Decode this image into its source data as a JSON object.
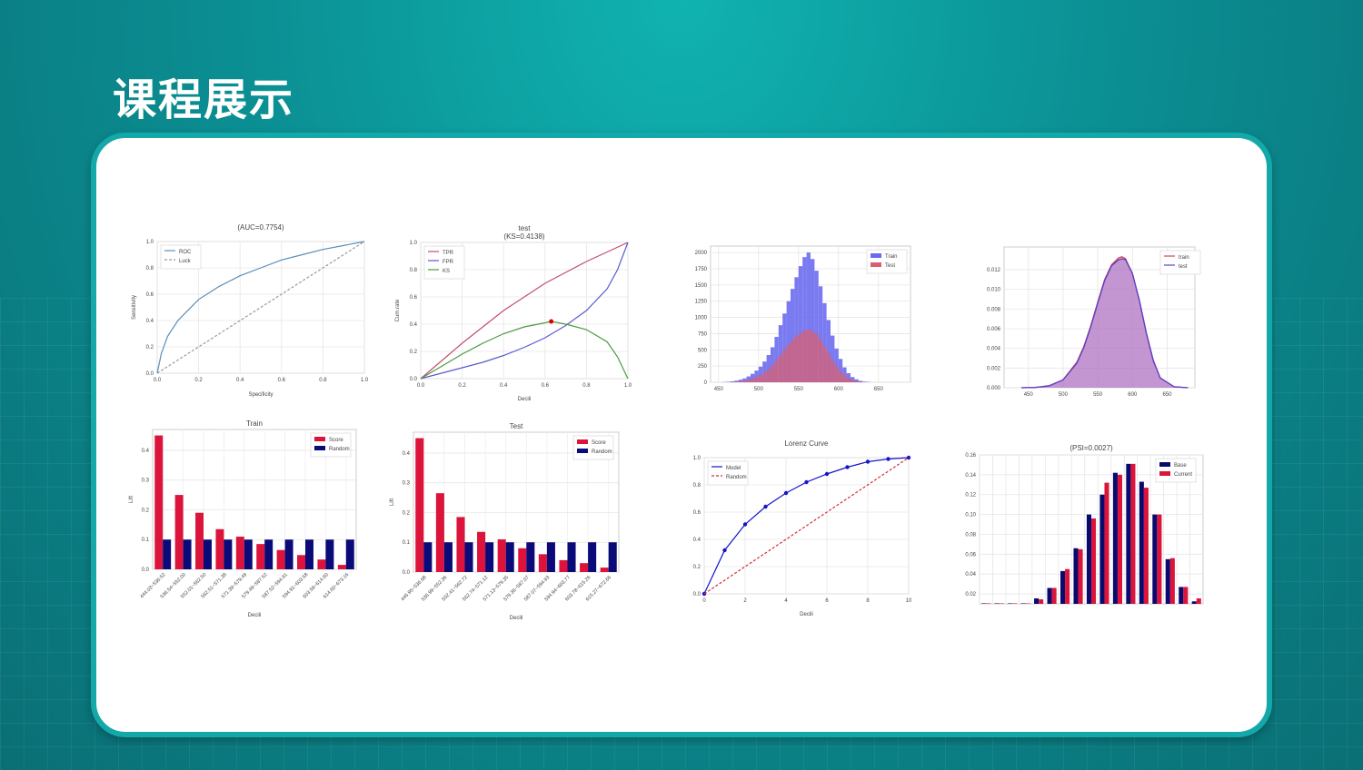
{
  "header": {
    "title": "课程展示"
  },
  "chart_data": [
    {
      "id": "roc",
      "type": "line",
      "title": "(AUC=0.7754)",
      "subtitle": "",
      "xlabel": "Specificity",
      "ylabel": "Sensitivity",
      "xlim": [
        0,
        1
      ],
      "ylim": [
        0,
        1
      ],
      "xticks": [
        "0.0",
        "0.2",
        "0.4",
        "0.6",
        "0.8",
        "1.0"
      ],
      "yticks": [
        "0.0",
        "0.2",
        "0.4",
        "0.6",
        "0.8",
        "1.0"
      ],
      "legend": "top-left",
      "series": [
        {
          "name": "ROC",
          "color": "#5b8db8",
          "style": "solid",
          "x": [
            0,
            0.02,
            0.05,
            0.1,
            0.15,
            0.2,
            0.3,
            0.4,
            0.5,
            0.6,
            0.7,
            0.8,
            0.9,
            1.0
          ],
          "y": [
            0,
            0.15,
            0.28,
            0.4,
            0.48,
            0.56,
            0.66,
            0.74,
            0.8,
            0.86,
            0.9,
            0.94,
            0.97,
            1.0
          ]
        },
        {
          "name": "Luck",
          "color": "#999999",
          "style": "dashed",
          "x": [
            0,
            1
          ],
          "y": [
            0,
            1
          ]
        }
      ]
    },
    {
      "id": "ks",
      "type": "line",
      "title": "test",
      "subtitle": "(KS=0.4138)",
      "xlabel": "Decili",
      "ylabel": "Cum.rate",
      "xlim": [
        0,
        1
      ],
      "ylim": [
        0,
        1
      ],
      "xticks": [
        "0.0",
        "0.2",
        "0.4",
        "0.6",
        "0.8",
        "1.0"
      ],
      "yticks": [
        "0.0",
        "0.2",
        "0.4",
        "0.6",
        "0.8",
        "1.0"
      ],
      "legend": "top-left",
      "marker": {
        "x": 0.63,
        "y": 0.42,
        "color": "#dd0000"
      },
      "series": [
        {
          "name": "TPR",
          "color": "#c0506a",
          "style": "solid",
          "x": [
            0,
            0.1,
            0.2,
            0.3,
            0.4,
            0.5,
            0.6,
            0.7,
            0.8,
            0.9,
            1.0
          ],
          "y": [
            0,
            0.13,
            0.26,
            0.38,
            0.5,
            0.6,
            0.7,
            0.78,
            0.86,
            0.93,
            1.0
          ]
        },
        {
          "name": "FPR",
          "color": "#5a5ad0",
          "style": "solid",
          "x": [
            0,
            0.1,
            0.2,
            0.3,
            0.4,
            0.5,
            0.6,
            0.7,
            0.8,
            0.9,
            0.95,
            1.0
          ],
          "y": [
            0,
            0.04,
            0.08,
            0.12,
            0.17,
            0.23,
            0.3,
            0.39,
            0.5,
            0.66,
            0.8,
            1.0
          ]
        },
        {
          "name": "KS",
          "color": "#4a9a40",
          "style": "solid",
          "x": [
            0,
            0.1,
            0.2,
            0.3,
            0.4,
            0.5,
            0.6,
            0.63,
            0.7,
            0.8,
            0.9,
            0.95,
            1.0
          ],
          "y": [
            0,
            0.09,
            0.18,
            0.26,
            0.33,
            0.38,
            0.41,
            0.42,
            0.4,
            0.36,
            0.27,
            0.16,
            0.0
          ]
        }
      ]
    },
    {
      "id": "hist",
      "type": "bar",
      "title": "",
      "xlim": [
        440,
        690
      ],
      "ylim": [
        0,
        2100
      ],
      "xticks": [
        "450",
        "500",
        "550",
        "600",
        "650"
      ],
      "yticks": [
        "0",
        "250",
        "500",
        "750",
        "1000",
        "1250",
        "1500",
        "1750",
        "2000"
      ],
      "legend": "top-right",
      "bin_start": 455,
      "bin_width": 5,
      "series": [
        {
          "name": "Train",
          "color": "#6b6bf0",
          "values": [
            3,
            8,
            15,
            25,
            40,
            60,
            90,
            130,
            180,
            240,
            320,
            420,
            540,
            700,
            880,
            1060,
            1250,
            1440,
            1620,
            1790,
            1930,
            2000,
            1900,
            1720,
            1480,
            1220,
            960,
            720,
            520,
            360,
            230,
            140,
            80,
            45,
            22,
            10,
            4
          ]
        },
        {
          "name": "Test",
          "color": "#d86070",
          "values": [
            1,
            3,
            6,
            10,
            16,
            25,
            38,
            55,
            80,
            110,
            150,
            200,
            260,
            340,
            420,
            500,
            580,
            650,
            710,
            760,
            800,
            810,
            790,
            740,
            660,
            560,
            450,
            340,
            250,
            170,
            110,
            65,
            35,
            18,
            8,
            3,
            1
          ]
        }
      ]
    },
    {
      "id": "kde",
      "type": "area",
      "title": "",
      "xlim": [
        415,
        690
      ],
      "ylim": [
        0,
        0.0143
      ],
      "xticks": [
        "450",
        "500",
        "550",
        "600",
        "650"
      ],
      "yticks": [
        "0.000",
        "0.002",
        "0.004",
        "0.006",
        "0.008",
        "0.010",
        "0.012"
      ],
      "legend": "top-right",
      "series": [
        {
          "name": "train",
          "color": "#d64050",
          "x": [
            440,
            460,
            480,
            500,
            520,
            530,
            540,
            550,
            560,
            570,
            580,
            585,
            590,
            600,
            610,
            620,
            630,
            640,
            660,
            680
          ],
          "y": [
            0,
            3e-05,
            0.0002,
            0.0008,
            0.0026,
            0.0042,
            0.0063,
            0.0087,
            0.011,
            0.0125,
            0.0132,
            0.0133,
            0.0131,
            0.0116,
            0.0088,
            0.0055,
            0.0027,
            0.001,
            0.0001,
            0
          ]
        },
        {
          "name": "test",
          "color": "#5a40c8",
          "x": [
            440,
            460,
            480,
            500,
            520,
            530,
            540,
            550,
            560,
            570,
            580,
            585,
            590,
            600,
            610,
            620,
            630,
            640,
            660,
            680
          ],
          "y": [
            0,
            3e-05,
            0.0002,
            0.0008,
            0.0025,
            0.0041,
            0.0062,
            0.0086,
            0.0109,
            0.0124,
            0.013,
            0.0131,
            0.013,
            0.0116,
            0.0089,
            0.0056,
            0.0028,
            0.001,
            0.0001,
            0
          ]
        }
      ]
    },
    {
      "id": "lift-train",
      "type": "bar",
      "title": "Train",
      "xlabel": "Decili",
      "ylabel": "Lift",
      "ylim": [
        0,
        0.47
      ],
      "yticks": [
        "0.0",
        "0.1",
        "0.2",
        "0.3",
        "0.4"
      ],
      "legend": "top-right",
      "categories": [
        "444.03~536.52",
        "536.54~552.00",
        "552.01~562.50",
        "562.51~571.38",
        "571.39~579.49",
        "579.49~587.52",
        "587.52~594.91",
        "594.91~603.58",
        "603.59~614.60",
        "614.60~673.16"
      ],
      "series": [
        {
          "name": "Score",
          "color": "#dc143c",
          "values": [
            0.45,
            0.25,
            0.19,
            0.135,
            0.11,
            0.085,
            0.065,
            0.048,
            0.033,
            0.015
          ]
        },
        {
          "name": "Random",
          "color": "#0a0a78",
          "values": [
            0.1,
            0.1,
            0.1,
            0.1,
            0.1,
            0.1,
            0.1,
            0.1,
            0.1,
            0.1
          ]
        }
      ]
    },
    {
      "id": "lift-test",
      "type": "bar",
      "title": "Test",
      "xlabel": "Decili",
      "ylabel": "Lift",
      "ylim": [
        0,
        0.47
      ],
      "yticks": [
        "0.0",
        "0.1",
        "0.2",
        "0.3",
        "0.4"
      ],
      "legend": "top-right",
      "categories": [
        "446.95~536.98",
        "536.99~552.36",
        "552.41~562.72",
        "562.74~571.12",
        "571.13~579.35",
        "579.36~587.07",
        "587.07~594.93",
        "594.94~603.77",
        "603.78~615.26",
        "615.27~672.66"
      ],
      "series": [
        {
          "name": "Score",
          "color": "#dc143c",
          "values": [
            0.45,
            0.265,
            0.185,
            0.135,
            0.11,
            0.08,
            0.06,
            0.04,
            0.03,
            0.015
          ]
        },
        {
          "name": "Random",
          "color": "#0a0a78",
          "values": [
            0.1,
            0.1,
            0.1,
            0.1,
            0.1,
            0.1,
            0.1,
            0.1,
            0.1,
            0.1
          ]
        }
      ]
    },
    {
      "id": "lorenz",
      "type": "line",
      "title": "Lorenz Curve",
      "xlabel": "Decili",
      "ylabel": "",
      "xlim": [
        0,
        10
      ],
      "ylim": [
        0,
        1
      ],
      "xticks": [
        "0",
        "2",
        "4",
        "6",
        "8",
        "10"
      ],
      "yticks": [
        "0.0",
        "0.2",
        "0.4",
        "0.6",
        "0.8",
        "1.0"
      ],
      "legend": "top-left",
      "series": [
        {
          "name": "Model",
          "color": "#1515c8",
          "style": "solid",
          "markers": true,
          "x": [
            0,
            1,
            2,
            3,
            4,
            5,
            6,
            7,
            8,
            9,
            10
          ],
          "y": [
            0,
            0.32,
            0.51,
            0.64,
            0.74,
            0.82,
            0.88,
            0.93,
            0.97,
            0.99,
            1.0
          ]
        },
        {
          "name": "Random",
          "color": "#d03030",
          "style": "dashed",
          "x": [
            0,
            10
          ],
          "y": [
            0,
            1
          ]
        }
      ]
    },
    {
      "id": "psi",
      "type": "bar",
      "title": "(PSI=0.0027)",
      "ylabel": "",
      "ylim": [
        0.01,
        0.16
      ],
      "yticks": [
        "0.02",
        "0.04",
        "0.06",
        "0.08",
        "0.10",
        "0.12",
        "0.14",
        "0.16"
      ],
      "legend": "top-right",
      "series": [
        {
          "name": "Base",
          "color": "#0a0a6e",
          "values": [
            0.0105,
            0.0105,
            0.0105,
            0.0105,
            0.0155,
            0.026,
            0.043,
            0.066,
            0.1,
            0.12,
            0.142,
            0.151,
            0.133,
            0.1,
            0.055,
            0.027,
            0.0125
          ]
        },
        {
          "name": "Current",
          "color": "#dc143c",
          "values": [
            0.0105,
            0.0105,
            0.0105,
            0.0105,
            0.0145,
            0.026,
            0.045,
            0.065,
            0.096,
            0.132,
            0.14,
            0.151,
            0.127,
            0.1,
            0.056,
            0.027,
            0.0155
          ]
        }
      ]
    }
  ]
}
